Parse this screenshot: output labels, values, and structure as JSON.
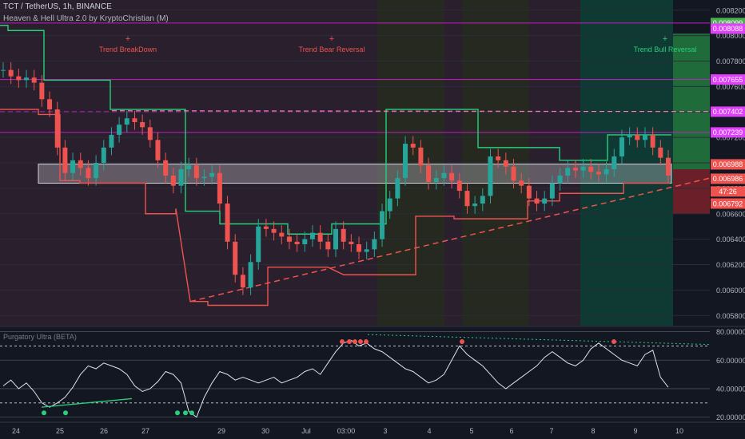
{
  "header": {
    "symbol_line": "TCT / TetherUS, 1h, BINANCE",
    "indicator_line": "Heaven & Hell Ultra 2.0 by KryptoChristian (M)"
  },
  "colors": {
    "background": "#131722",
    "bear_zone": "#2a1f2c",
    "neutral_zone": "#25291f",
    "bull_zone": "#0f3a33",
    "bull_zone_bright": "#1f6b3a",
    "red_line": "#ef5350",
    "green_line": "#26d07c",
    "magenta_line": "#c21fc2",
    "gray_line": "#9598a1",
    "up_candle": "#26a69a",
    "down_candle": "#ef5350"
  },
  "chart_data": [
    {
      "type": "candlestick",
      "title": "TCT / TetherUS, 1h, BINANCE",
      "y_axis_ticks": [
        0.0058,
        0.006,
        0.0062,
        0.0064,
        0.0066,
        0.0068,
        0.007,
        0.0072,
        0.0074,
        0.0076,
        0.0078,
        0.008,
        0.0082
      ],
      "y_axis_tick_labels": [
        "0.005800",
        "0.006000",
        "0.006200",
        "0.006400",
        "0.006600",
        "0.006800",
        "0.007000",
        "0.007200",
        "0.007400",
        "0.007600",
        "0.007800",
        "0.008000",
        "0.008200"
      ],
      "x_axis_labels": [
        "24",
        "25",
        "26",
        "27",
        "29",
        "30",
        "Jul",
        "03:00",
        "3",
        "4",
        "5",
        "6",
        "7",
        "8",
        "9",
        "10"
      ],
      "ylim": [
        0.00572,
        0.00828
      ],
      "price_tags": [
        {
          "label": "0.008099",
          "value": 0.008099,
          "color": "#4caf50"
        },
        {
          "label": "0.008088",
          "value": 0.008055,
          "color": "#e040fb"
        },
        {
          "label": "0.007655",
          "value": 0.007655,
          "color": "#e040fb"
        },
        {
          "label": "0.007402",
          "value": 0.007402,
          "color": "#e040fb"
        },
        {
          "label": "0.007239",
          "value": 0.007239,
          "color": "#e040fb"
        },
        {
          "label": "0.006988",
          "value": 0.006988,
          "color": "#ef5350"
        },
        {
          "label": "0.006986",
          "value": 0.006875,
          "color": "#ef5350"
        },
        {
          "label": "47:26",
          "value": 0.006775,
          "color": "#ef5350"
        },
        {
          "label": "0.006792",
          "value": 0.00668,
          "color": "#ef5350"
        }
      ],
      "horizontal_levels": [
        0.008099,
        0.007655,
        0.007239,
        0.007402
      ],
      "zone_box": {
        "top": 0.00699,
        "bottom": 0.00684
      },
      "annotations": [
        "Trend BreakDown",
        "Trend Bear Reversal",
        "Trend Bull Reversal"
      ],
      "close_series": [
        0.00773,
        0.00768,
        0.00765,
        0.00767,
        0.00763,
        0.0075,
        0.00742,
        0.00712,
        0.00692,
        0.00702,
        0.00696,
        0.00688,
        0.007,
        0.00712,
        0.00722,
        0.0073,
        0.00735,
        0.00732,
        0.00728,
        0.00718,
        0.00702,
        0.0069,
        0.00682,
        0.00695,
        0.00698,
        0.00688,
        0.00689,
        0.00692,
        0.00668,
        0.00638,
        0.00612,
        0.00602,
        0.00622,
        0.0065,
        0.00648,
        0.00645,
        0.00642,
        0.00638,
        0.00636,
        0.0064,
        0.00645,
        0.00638,
        0.00632,
        0.00648,
        0.00638,
        0.00636,
        0.0063,
        0.00632,
        0.0064,
        0.00662,
        0.00672,
        0.00688,
        0.00715,
        0.00712,
        0.00698,
        0.00685,
        0.00688,
        0.00692,
        0.00686,
        0.00678,
        0.00666,
        0.00668,
        0.00674,
        0.00705,
        0.00702,
        0.00697,
        0.00686,
        0.00682,
        0.00672,
        0.00668,
        0.00672,
        0.00684,
        0.0069,
        0.00696,
        0.00694,
        0.00697,
        0.00693,
        0.00691,
        0.00695,
        0.00705,
        0.0072,
        0.00722,
        0.00718,
        0.00722,
        0.00712,
        0.00704,
        0.0069
      ],
      "support_dashed": {
        "from": 0.00591,
        "to": 0.00688
      },
      "resistance_dashed": 0.00741
    },
    {
      "type": "line",
      "title": "Purgatory Ultra (BETA)",
      "y_axis_tick_labels": [
        "20.000000",
        "40.000000",
        "60.000000",
        "80.000000"
      ],
      "ylim": [
        17,
        82
      ],
      "levels": [
        70,
        30
      ],
      "values": [
        42,
        46,
        40,
        44,
        38,
        30,
        27,
        30,
        34,
        41,
        50,
        56,
        54,
        58,
        56,
        54,
        50,
        42,
        38,
        40,
        45,
        52,
        50,
        44,
        24,
        20,
        34,
        44,
        52,
        50,
        46,
        48,
        46,
        44,
        46,
        48,
        44,
        46,
        48,
        52,
        54,
        50,
        58,
        66,
        72,
        74,
        70,
        72,
        68,
        66,
        62,
        58,
        54,
        52,
        48,
        44,
        46,
        50,
        60,
        70,
        64,
        60,
        56,
        50,
        44,
        40,
        44,
        48,
        52,
        56,
        62,
        66,
        62,
        58,
        56,
        60,
        68,
        72,
        68,
        64,
        60,
        58,
        56,
        64,
        67,
        48,
        41
      ]
    }
  ]
}
